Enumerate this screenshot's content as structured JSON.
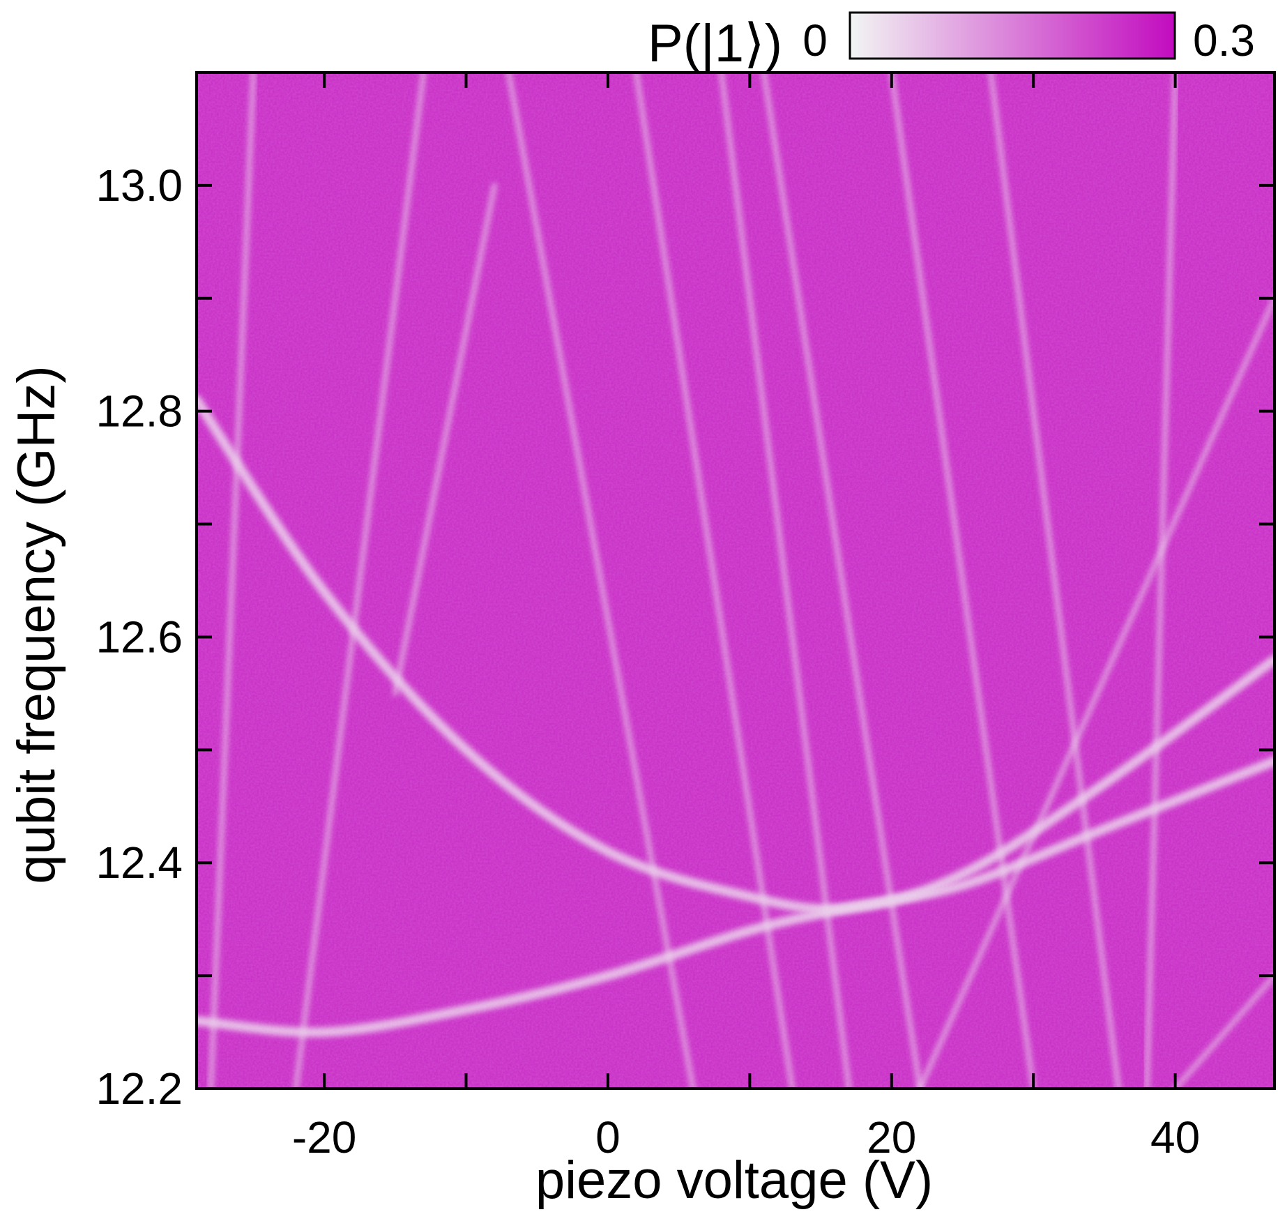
{
  "chart_data": {
    "type": "heatmap",
    "title": "",
    "xlabel": "piezo voltage (V)",
    "ylabel": "qubit frequency (GHz)",
    "xlim": [
      -29,
      47
    ],
    "ylim": [
      12.2,
      13.1
    ],
    "x_ticks": [
      -20,
      0,
      20,
      40
    ],
    "x_tick_labels": [
      "-20",
      "0",
      "20",
      "40"
    ],
    "x_minor_ticks": [
      -10,
      10,
      30
    ],
    "y_ticks": [
      12.2,
      12.4,
      12.6,
      12.8,
      13.0
    ],
    "y_tick_labels": [
      "12.2",
      "12.4",
      "12.6",
      "12.8",
      "13.0"
    ],
    "y_minor_ticks": [
      12.3,
      12.5,
      12.7,
      12.9
    ],
    "colorbar": {
      "label": "P(|1⟩)",
      "min": 0,
      "max": 0.3,
      "min_label": "0",
      "max_label": "0.3",
      "color_low": "#f2f5f3",
      "color_high": "#c20bbf",
      "placement": "top-right"
    },
    "background_value": 0.26,
    "features": [
      {
        "kind": "parabola",
        "points": [
          [
            -29,
            12.81
          ],
          [
            -20,
            12.64
          ],
          [
            -10,
            12.5
          ],
          [
            0,
            12.41
          ],
          [
            10,
            12.37
          ],
          [
            17,
            12.36
          ],
          [
            25,
            12.39
          ],
          [
            35,
            12.47
          ],
          [
            47,
            12.58
          ]
        ]
      },
      {
        "kind": "parabola",
        "points": [
          [
            -29,
            12.26
          ],
          [
            -20,
            12.25
          ],
          [
            -10,
            12.27
          ],
          [
            0,
            12.3
          ],
          [
            10,
            12.34
          ],
          [
            17,
            12.36
          ],
          [
            25,
            12.38
          ],
          [
            35,
            12.43
          ],
          [
            47,
            12.49
          ]
        ]
      },
      {
        "kind": "line",
        "points": [
          [
            -7,
            13.1
          ],
          [
            6,
            12.2
          ]
        ]
      },
      {
        "kind": "line",
        "points": [
          [
            2,
            13.1
          ],
          [
            13,
            12.2
          ]
        ]
      },
      {
        "kind": "line",
        "points": [
          [
            8,
            13.1
          ],
          [
            17,
            12.2
          ]
        ]
      },
      {
        "kind": "line",
        "points": [
          [
            11,
            13.1
          ],
          [
            22,
            12.2
          ]
        ]
      },
      {
        "kind": "line",
        "points": [
          [
            20,
            13.1
          ],
          [
            30,
            12.2
          ]
        ]
      },
      {
        "kind": "line",
        "points": [
          [
            27,
            13.1
          ],
          [
            36,
            12.2
          ]
        ]
      },
      {
        "kind": "line",
        "points": [
          [
            -13,
            13.1
          ],
          [
            -22,
            12.2
          ]
        ]
      },
      {
        "kind": "line",
        "points": [
          [
            -8,
            13.0
          ],
          [
            -15,
            12.55
          ]
        ]
      },
      {
        "kind": "line",
        "points": [
          [
            -25,
            13.1
          ],
          [
            -28,
            12.2
          ]
        ]
      },
      {
        "kind": "line",
        "points": [
          [
            40,
            13.1
          ],
          [
            38,
            12.2
          ]
        ]
      },
      {
        "kind": "line",
        "points": [
          [
            47,
            12.9
          ],
          [
            22,
            12.2
          ]
        ]
      },
      {
        "kind": "line",
        "points": [
          [
            47,
            12.3
          ],
          [
            40,
            12.2
          ]
        ]
      }
    ]
  }
}
